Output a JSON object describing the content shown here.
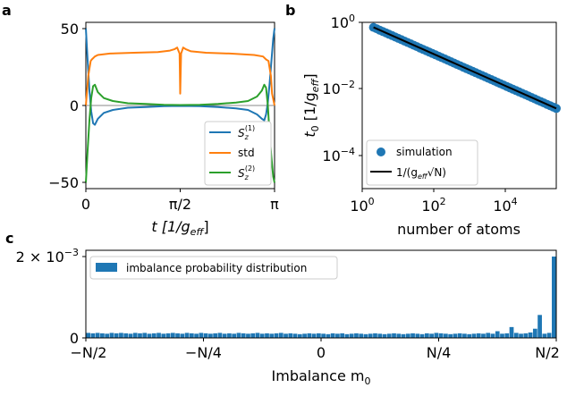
{
  "panels": {
    "a": {
      "label": "a",
      "chart_data": {
        "type": "line",
        "x_ticks": [
          "0",
          "π/2",
          "π"
        ],
        "xlabel": "t [1/g",
        "xlabel_sub": "eff",
        "xlabel_end": "]",
        "y_ticks": [
          "50",
          "0",
          "−50"
        ],
        "xlim": [
          0,
          3.1416
        ],
        "ylim": [
          -56,
          56
        ],
        "grid": false,
        "legend_position": "lower-right",
        "series": [
          {
            "name": "S",
            "name_sup": "(1)",
            "name_sub": "z",
            "color": "#1f77b4",
            "x": [
              0,
              0.03,
              0.06,
              0.09,
              0.12,
              0.15,
              0.2,
              0.3,
              0.45,
              0.7,
              1.0,
              1.3,
              1.5708,
              1.9,
              2.2,
              2.5,
              2.7,
              2.85,
              2.93,
              2.97,
              3.0,
              3.03,
              3.06,
              3.09,
              3.12,
              3.1416
            ],
            "y": [
              52,
              30,
              10,
              -4,
              -12,
              -13,
              -9,
              -5,
              -3,
              -1.5,
              -1,
              -0.5,
              -0.3,
              -0.5,
              -1,
              -2,
              -3,
              -6,
              -9,
              -10,
              -6,
              2,
              15,
              30,
              45,
              52
            ]
          },
          {
            "name": "std",
            "color": "#ff7f0e",
            "x": [
              0,
              0.04,
              0.08,
              0.1,
              0.15,
              0.2,
              0.4,
              0.8,
              1.2,
              1.4,
              1.48,
              1.52,
              1.56,
              1.5708,
              1.585,
              1.62,
              1.66,
              1.75,
              2.0,
              2.4,
              2.8,
              2.95,
              3.0,
              3.04,
              3.08,
              3.1,
              3.1416
            ],
            "y": [
              0,
              20,
              30,
              31,
              33,
              34,
              35,
              35.5,
              36,
              37,
              38,
              39,
              35,
              8,
              35,
              39,
              38,
              36.5,
              35.5,
              35,
              34,
              33,
              31,
              30,
              20,
              8,
              0
            ]
          },
          {
            "name": "S",
            "name_sup": "(2)",
            "name_sub": "z",
            "color": "#2ca02c",
            "x": [
              0,
              0.03,
              0.06,
              0.09,
              0.12,
              0.15,
              0.2,
              0.3,
              0.45,
              0.7,
              1.0,
              1.3,
              1.5708,
              1.9,
              2.2,
              2.5,
              2.7,
              2.85,
              2.93,
              2.97,
              3.0,
              3.03,
              3.06,
              3.09,
              3.12,
              3.1416
            ],
            "y": [
              -52,
              -30,
              -10,
              5,
              13,
              14,
              9,
              5,
              3,
              1.5,
              1,
              0.5,
              0.3,
              0.5,
              1,
              2,
              3,
              6,
              10,
              14,
              12,
              0,
              -20,
              -35,
              -48,
              -52
            ]
          }
        ],
        "zero_line_color": "#888888"
      }
    },
    "b": {
      "label": "b",
      "chart_data": {
        "type": "scatter",
        "x_scale": "log",
        "y_scale": "log",
        "xlim": [
          1,
          150000
        ],
        "ylim": [
          1e-05,
          1
        ],
        "x_ticks": [
          {
            "base": "10",
            "exp": "0"
          },
          {
            "base": "10",
            "exp": "2"
          },
          {
            "base": "10",
            "exp": "4"
          }
        ],
        "y_ticks": [
          {
            "base": "10",
            "exp": "0"
          },
          {
            "base": "10",
            "exp": "−2"
          },
          {
            "base": "10",
            "exp": "−4"
          }
        ],
        "xlabel": "number of atoms",
        "ylabel": "t",
        "ylabel_sub": "0",
        "ylabel_rest": " [1/g",
        "ylabel_sub2": "eff",
        "ylabel_end": "]",
        "grid": false,
        "legend_position": "lower-left",
        "series": [
          {
            "name": "simulation",
            "kind": "points",
            "color": "#1f77b4",
            "x_range": [
              2,
              150000
            ],
            "relation": "t0 = 1/sqrt(N)",
            "n_points": 60
          },
          {
            "name": "1/(g",
            "name_sub": "eff",
            "name_end": "√N)",
            "kind": "line",
            "color": "#000000",
            "x": [
              2,
              150000
            ],
            "y": [
              0.7071,
              0.002582
            ]
          }
        ]
      }
    },
    "c": {
      "label": "c",
      "chart_data": {
        "type": "bar",
        "x_ticks": [
          "−N/2",
          "−N/4",
          "0",
          "N/4",
          "N/2"
        ],
        "xlim": [
          -1,
          1
        ],
        "xlabel": "Imbalance m",
        "xlabel_sub": "0",
        "y_ticks": [
          {
            "text": "0"
          },
          {
            "text": "2 × 10",
            "exp": "−3"
          }
        ],
        "ylim": [
          0,
          0.0021
        ],
        "grid": false,
        "legend_position": "top-left",
        "series": [
          {
            "name": "imbalance probability distribution",
            "color": "#1f77b4",
            "x": [
              -0.99,
              -0.97,
              -0.95,
              -0.93,
              -0.91,
              -0.89,
              -0.87,
              -0.85,
              -0.83,
              -0.81,
              -0.79,
              -0.77,
              -0.75,
              -0.73,
              -0.71,
              -0.69,
              -0.67,
              -0.65,
              -0.63,
              -0.61,
              -0.59,
              -0.57,
              -0.55,
              -0.53,
              -0.51,
              -0.49,
              -0.47,
              -0.45,
              -0.43,
              -0.41,
              -0.39,
              -0.37,
              -0.35,
              -0.33,
              -0.31,
              -0.29,
              -0.27,
              -0.25,
              -0.23,
              -0.21,
              -0.19,
              -0.17,
              -0.15,
              -0.13,
              -0.11,
              -0.09,
              -0.07,
              -0.05,
              -0.03,
              -0.01,
              0.01,
              0.03,
              0.05,
              0.07,
              0.09,
              0.11,
              0.13,
              0.15,
              0.17,
              0.19,
              0.21,
              0.23,
              0.25,
              0.27,
              0.29,
              0.31,
              0.33,
              0.35,
              0.37,
              0.39,
              0.41,
              0.43,
              0.45,
              0.47,
              0.49,
              0.51,
              0.53,
              0.55,
              0.57,
              0.59,
              0.61,
              0.63,
              0.65,
              0.67,
              0.69,
              0.71,
              0.73,
              0.75,
              0.77,
              0.79,
              0.81,
              0.83,
              0.85,
              0.87,
              0.89,
              0.91,
              0.93,
              0.95,
              0.97,
              0.99
            ],
            "values": [
              0.00012,
              0.00011,
              0.00012,
              0.00011,
              0.0001,
              0.00012,
              0.00011,
              0.00012,
              0.00011,
              0.0001,
              0.00012,
              0.00011,
              0.00012,
              0.0001,
              0.00011,
              0.00012,
              0.0001,
              0.00011,
              0.00012,
              0.00011,
              0.0001,
              0.00012,
              0.00011,
              0.0001,
              0.00012,
              0.00011,
              0.0001,
              0.00011,
              0.00012,
              0.0001,
              0.00011,
              0.0001,
              0.00012,
              0.00011,
              0.0001,
              0.00011,
              0.00012,
              0.0001,
              0.00011,
              0.0001,
              0.00011,
              0.00012,
              0.0001,
              0.00011,
              0.0001,
              9e-05,
              0.0001,
              0.00011,
              0.0001,
              0.00011,
              0.0001,
              9e-05,
              0.00011,
              0.0001,
              0.00011,
              9e-05,
              0.0001,
              0.00011,
              0.0001,
              9e-05,
              0.0001,
              0.00011,
              0.0001,
              9e-05,
              0.0001,
              0.00011,
              0.0001,
              9e-05,
              0.0001,
              0.00011,
              0.0001,
              9e-05,
              0.00011,
              0.0001,
              0.00012,
              0.00011,
              0.0001,
              9e-05,
              0.0001,
              0.00011,
              0.0001,
              9e-05,
              0.0001,
              0.00011,
              0.0001,
              0.00012,
              0.0001,
              0.00016,
              0.0001,
              0.00011,
              0.00026,
              0.00012,
              0.0001,
              0.00011,
              0.00013,
              0.00022,
              0.00055,
              0.0001,
              0.00012,
              0.00195
            ]
          }
        ]
      }
    }
  }
}
